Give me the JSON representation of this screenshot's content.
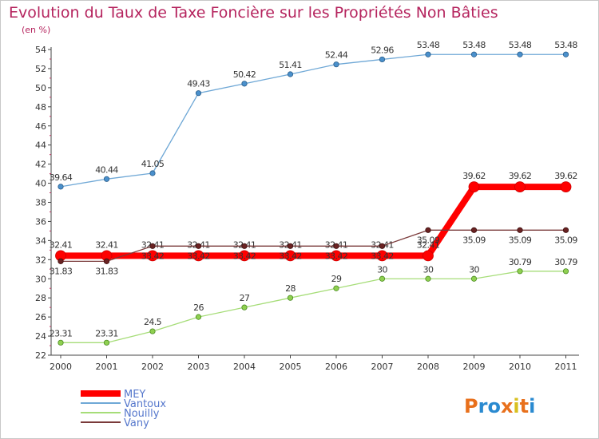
{
  "chart_data": {
    "type": "line",
    "title": "Evolution du Taux de Taxe Foncière sur les Propriétés Non Bâties",
    "ylabel": "(en %)",
    "xlabel": "",
    "x": [
      "2000",
      "2001",
      "2002",
      "2003",
      "2004",
      "2005",
      "2006",
      "2007",
      "2008",
      "2009",
      "2010",
      "2011"
    ],
    "ylim": [
      22,
      54
    ],
    "yticks": [
      "22",
      "24",
      "26",
      "28",
      "30",
      "32",
      "34",
      "36",
      "38",
      "40",
      "42",
      "44",
      "46",
      "48",
      "50",
      "52",
      "54"
    ],
    "grid": false,
    "legend_position": "bottom-left",
    "series": [
      {
        "name": "MEY",
        "color": "#ff0000",
        "values": [
          32.41,
          32.41,
          32.41,
          32.41,
          32.41,
          32.41,
          32.41,
          32.41,
          32.41,
          39.62,
          39.62,
          39.62
        ],
        "labels": [
          "32.41",
          "32.41",
          "32.41",
          "32.41",
          "32.41",
          "32.41",
          "32.41",
          "32.41",
          "32.41",
          "39.62",
          "39.62",
          "39.62"
        ]
      },
      {
        "name": "Vantoux",
        "color": "#6fa8d6",
        "values": [
          39.64,
          40.44,
          41.05,
          49.43,
          50.42,
          51.41,
          52.44,
          52.96,
          53.48,
          53.48,
          53.48,
          53.48
        ],
        "labels": [
          "39.64",
          "40.44",
          "41.05",
          "49.43",
          "50.42",
          "51.41",
          "52.44",
          "52.96",
          "53.48",
          "53.48",
          "53.48",
          "53.48"
        ]
      },
      {
        "name": "Nouilly",
        "color": "#a6dd78",
        "values": [
          23.31,
          23.31,
          24.5,
          26,
          27,
          28,
          29,
          30,
          30,
          30,
          30.79,
          30.79
        ],
        "labels": [
          "23.31",
          "23.31",
          "24.5",
          "26",
          "27",
          "28",
          "29",
          "30",
          "30",
          "30",
          "30.79",
          "30.79"
        ]
      },
      {
        "name": "Vany",
        "color": "#7a3a3a",
        "values": [
          31.83,
          31.83,
          33.42,
          33.42,
          33.42,
          33.42,
          33.42,
          33.42,
          35.09,
          35.09,
          35.09,
          35.09
        ],
        "labels": [
          "31.83",
          "31.83",
          "33.42",
          "33.42",
          "33.42",
          "33.42",
          "33.42",
          "33.42",
          "35.09",
          "35.09",
          "35.09",
          "35.09"
        ]
      }
    ]
  },
  "logo": {
    "text": "Proxiti"
  }
}
